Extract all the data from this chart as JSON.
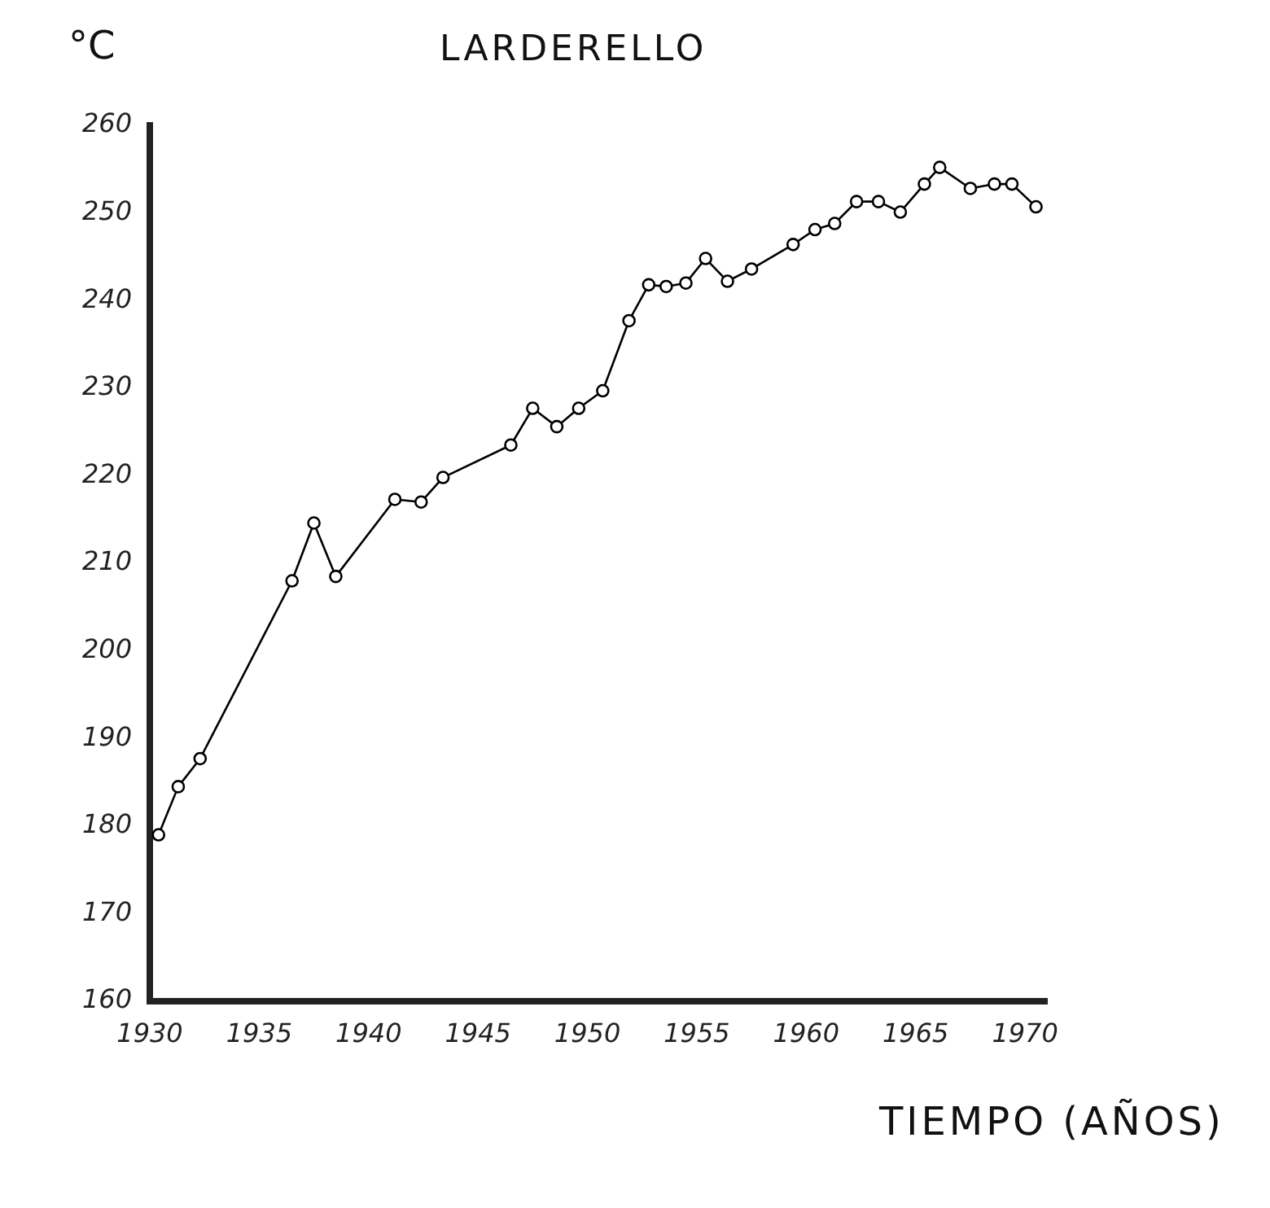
{
  "chart_data": {
    "type": "line",
    "title": "LARDERELLO",
    "xlabel": "TIEMPO (AÑOS)",
    "ylabel": "°C",
    "x": [
      1930.4,
      1931.3,
      1932.3,
      1936.5,
      1937.5,
      1938.5,
      1941.2,
      1942.4,
      1943.4,
      1946.5,
      1947.5,
      1948.6,
      1949.6,
      1950.7,
      1951.9,
      1952.8,
      1953.6,
      1954.5,
      1955.4,
      1956.4,
      1957.5,
      1959.4,
      1960.4,
      1961.3,
      1962.3,
      1963.3,
      1964.3,
      1965.4,
      1966.1,
      1967.5,
      1968.6,
      1969.4,
      1970.5
    ],
    "values": [
      179,
      184.5,
      187.7,
      208,
      214.6,
      208.5,
      217.3,
      217,
      219.8,
      223.5,
      227.7,
      225.6,
      227.7,
      229.7,
      237.7,
      241.8,
      241.6,
      242,
      244.8,
      242.2,
      243.6,
      246.4,
      248.1,
      248.8,
      251.3,
      251.3,
      250.1,
      253.3,
      255.2,
      252.8,
      253.3,
      253.3,
      250.7
    ],
    "color": "#000000",
    "xlim": [
      1930,
      1971
    ],
    "xticks": [
      1930,
      1935,
      1940,
      1945,
      1950,
      1955,
      1960,
      1965,
      1970
    ],
    "ylim": [
      160,
      260
    ],
    "yticks": [
      160,
      170,
      180,
      190,
      200,
      210,
      220,
      230,
      240,
      250,
      260
    ],
    "grid": false,
    "legend": false,
    "marker": "circle",
    "line_style": "solid"
  }
}
